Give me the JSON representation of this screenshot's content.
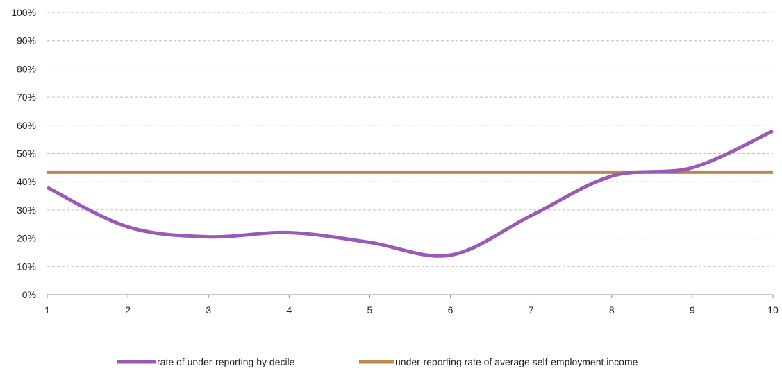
{
  "chart_data": {
    "type": "line",
    "title": "",
    "xlabel": "",
    "ylabel": "",
    "x": [
      1,
      2,
      3,
      4,
      5,
      6,
      7,
      8,
      9,
      10
    ],
    "ylim": [
      0,
      1
    ],
    "y_ticks": [
      "0%",
      "10%",
      "20%",
      "30%",
      "40%",
      "50%",
      "60%",
      "70%",
      "80%",
      "90%",
      "100%"
    ],
    "x_ticks": [
      "1",
      "2",
      "3",
      "4",
      "5",
      "6",
      "7",
      "8",
      "9",
      "10"
    ],
    "grid": true,
    "legend_position": "bottom",
    "series": [
      {
        "name": "rate of under-reporting by decile",
        "color": "#9b59b6",
        "values": [
          0.38,
          0.24,
          0.205,
          0.22,
          0.185,
          0.14,
          0.28,
          0.42,
          0.45,
          0.58
        ]
      },
      {
        "name": "under-reporting rate of average self-employment income",
        "color": "#b8894a",
        "values": [
          0.434,
          0.434,
          0.434,
          0.434,
          0.434,
          0.434,
          0.434,
          0.434,
          0.434,
          0.434
        ]
      }
    ]
  }
}
